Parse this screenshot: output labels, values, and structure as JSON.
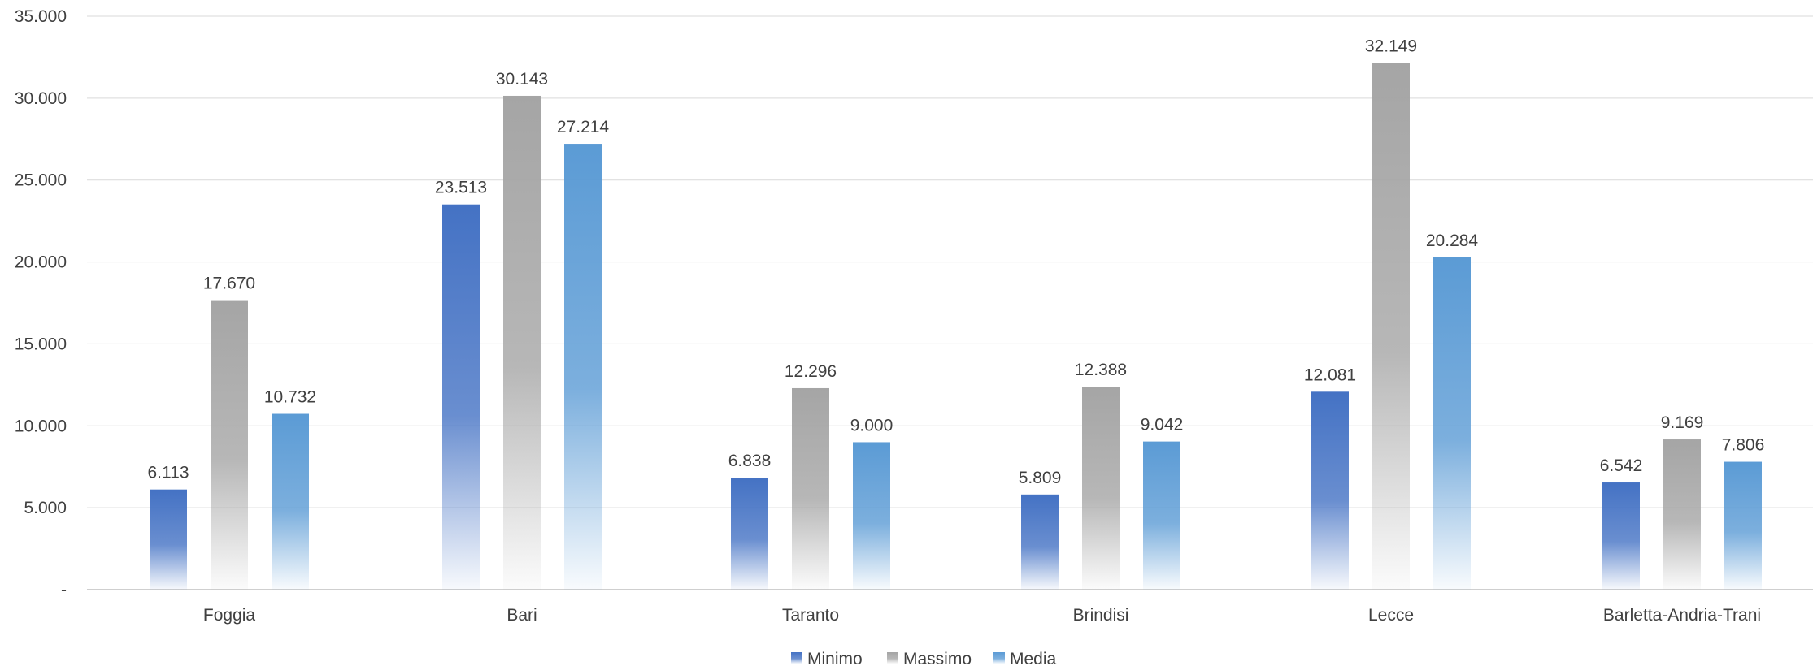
{
  "chart_data": {
    "type": "bar",
    "title": "",
    "xlabel": "",
    "ylabel": "",
    "categories": [
      "Foggia",
      "Bari",
      "Taranto",
      "Brindisi",
      "Lecce",
      "Barletta-Andria-Trani"
    ],
    "series": [
      {
        "name": "Minimo",
        "values": [
          6113,
          23513,
          6838,
          5809,
          12081,
          6542
        ],
        "labels": [
          "6.113",
          "23.513",
          "6.838",
          "5.809",
          "12.081",
          "6.542"
        ],
        "color": "#4472C4"
      },
      {
        "name": "Massimo",
        "values": [
          17670,
          30143,
          12296,
          12388,
          32149,
          9169
        ],
        "labels": [
          "17.670",
          "30.143",
          "12.296",
          "12.388",
          "32.149",
          "9.169"
        ],
        "color": "#A5A5A5"
      },
      {
        "name": "Media",
        "values": [
          10732,
          27214,
          9000,
          9042,
          20284,
          7806
        ],
        "labels": [
          "10.732",
          "27.214",
          "9.000",
          "9.042",
          "20.284",
          "7.806"
        ],
        "color": "#5B9BD5"
      }
    ],
    "ylim": [
      0,
      35000
    ],
    "yticks": [
      0,
      5000,
      10000,
      15000,
      20000,
      25000,
      30000,
      35000
    ],
    "ytick_labels": [
      "-",
      "5.000",
      "10.000",
      "15.000",
      "20.000",
      "25.000",
      "30.000",
      "35.000"
    ],
    "grid": true,
    "legend_position": "bottom"
  }
}
